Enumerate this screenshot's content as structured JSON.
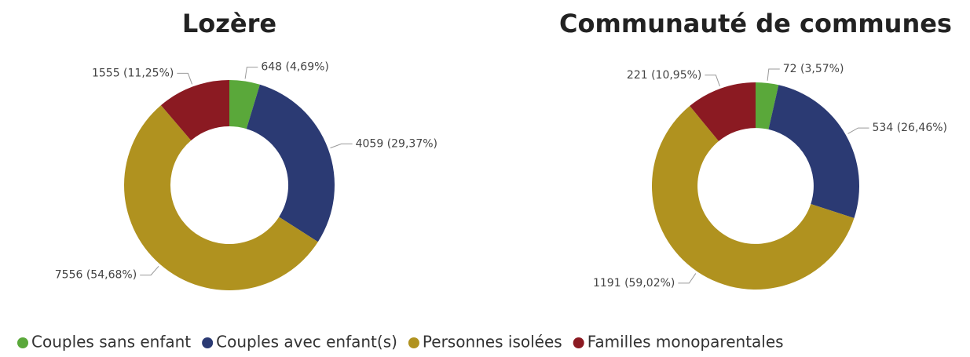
{
  "chart_data": [
    {
      "type": "donut",
      "title": "Lozère",
      "categories": [
        "Couples sans enfant",
        "Couples avec enfant(s)",
        "Personnes isolées",
        "Familles monoparentales"
      ],
      "values": [
        648,
        4059,
        7556,
        1555
      ],
      "value_labels": [
        "648 (4,69%)",
        "4059 (29,37%)",
        "7556 (54,68%)",
        "1555 (11,25%)"
      ],
      "colors": [
        "#5aa83a",
        "#2b3a73",
        "#b0921f",
        "#8b1a22"
      ]
    },
    {
      "type": "donut",
      "title": "Communauté de communes",
      "categories": [
        "Couples sans enfant",
        "Couples avec enfant(s)",
        "Personnes isolées",
        "Familles monoparentales"
      ],
      "values": [
        72,
        534,
        1191,
        221
      ],
      "value_labels": [
        "72 (3,57%)",
        "534 (26,46%)",
        "1191 (59,02%)",
        "221 (10,95%)"
      ],
      "colors": [
        "#5aa83a",
        "#2b3a73",
        "#b0921f",
        "#8b1a22"
      ]
    }
  ]
}
